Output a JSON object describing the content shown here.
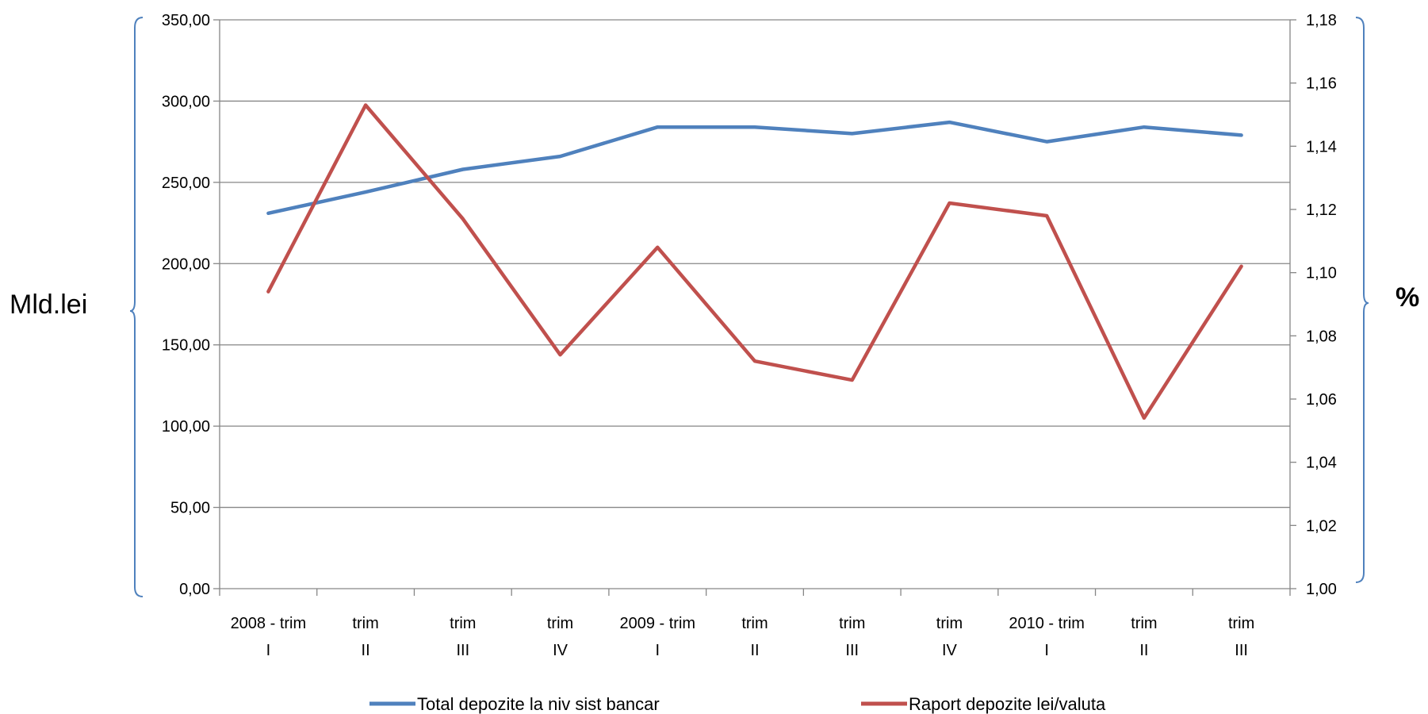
{
  "chart_data": {
    "type": "line",
    "categories": [
      [
        "2008 - trim",
        "I"
      ],
      [
        "trim",
        "II"
      ],
      [
        "trim",
        "III"
      ],
      [
        "trim",
        "IV"
      ],
      [
        "2009 - trim",
        "I"
      ],
      [
        "trim",
        "II"
      ],
      [
        "trim",
        "III"
      ],
      [
        "trim",
        "IV"
      ],
      [
        "2010 - trim",
        "I"
      ],
      [
        "trim",
        "II"
      ],
      [
        "trim",
        "III"
      ]
    ],
    "y_left": {
      "title": "Mld.lei",
      "ylim": [
        0,
        350
      ],
      "ticks": [
        "0,00",
        "50,00",
        "100,00",
        "150,00",
        "200,00",
        "250,00",
        "300,00",
        "350,00"
      ]
    },
    "y_right": {
      "title": "%",
      "ylim": [
        1.0,
        1.18
      ],
      "ticks": [
        "1,00",
        "1,02",
        "1,04",
        "1,06",
        "1,08",
        "1,10",
        "1,12",
        "1,14",
        "1,16",
        "1,18"
      ]
    },
    "series": [
      {
        "name": "Total depozite la niv sist bancar",
        "axis": "left",
        "color": "#4f81bd",
        "values": [
          231,
          244,
          258,
          266,
          284,
          284,
          280,
          287,
          275,
          284,
          279
        ]
      },
      {
        "name": "Raport depozite lei/valuta",
        "axis": "right",
        "color": "#c0504d",
        "values": [
          1.094,
          1.153,
          1.117,
          1.074,
          1.108,
          1.072,
          1.066,
          1.122,
          1.118,
          1.054,
          1.102
        ]
      }
    ],
    "grid": true,
    "legend_position": "bottom"
  }
}
